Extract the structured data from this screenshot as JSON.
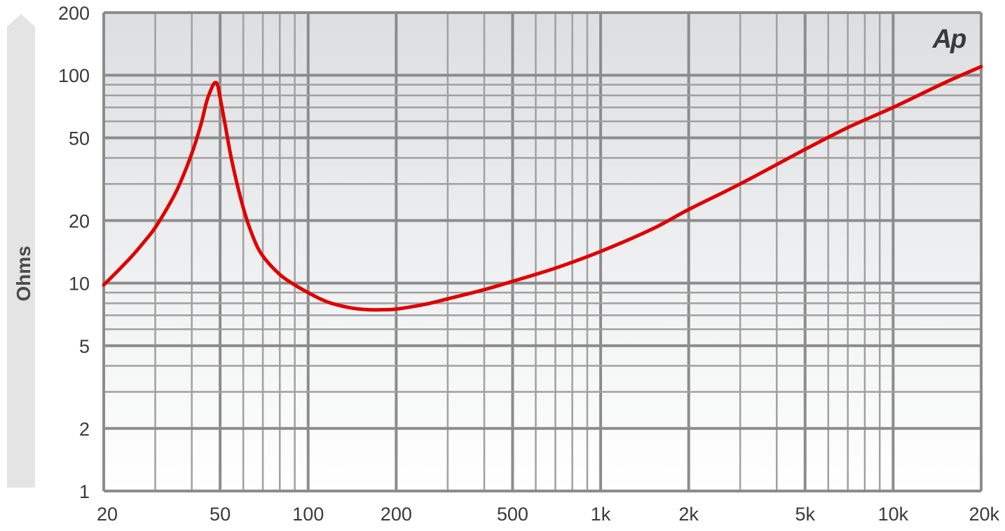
{
  "chart_data": {
    "type": "line",
    "title": "",
    "logo_text": "Ap",
    "ylabel": "Ohms",
    "xlabel": "",
    "x_scale": "log",
    "y_scale": "log",
    "xlim": [
      20,
      20000
    ],
    "ylim": [
      1,
      200
    ],
    "grid": true,
    "x_tick_values": [
      20,
      50,
      100,
      200,
      500,
      1000,
      2000,
      5000,
      10000,
      20000
    ],
    "x_tick_labels": [
      "20",
      "50",
      "100",
      "200",
      "500",
      "1k",
      "2k",
      "5k",
      "10k",
      "20k"
    ],
    "y_tick_values": [
      1,
      2,
      5,
      10,
      20,
      50,
      100,
      200
    ],
    "y_tick_labels": [
      "1",
      "2",
      "5",
      "10",
      "20",
      "50",
      "100",
      "200"
    ],
    "series": [
      {
        "color": "#e00000",
        "x": [
          20,
          22,
          25,
          28,
          30,
          33,
          36,
          40,
          43,
          45,
          47,
          48,
          49,
          50,
          52,
          55,
          60,
          65,
          70,
          80,
          90,
          100,
          110,
          120,
          140,
          160,
          180,
          200,
          250,
          300,
          400,
          500,
          700,
          1000,
          1500,
          2000,
          3000,
          5000,
          7000,
          10000,
          15000,
          20000
        ],
        "y": [
          9.8,
          11.2,
          13.5,
          16.3,
          18.5,
          23,
          29,
          42,
          58,
          75,
          88,
          92,
          90,
          78,
          58,
          38,
          23,
          16.5,
          13.5,
          11,
          9.8,
          9.0,
          8.4,
          8.0,
          7.6,
          7.45,
          7.45,
          7.5,
          7.9,
          8.4,
          9.3,
          10.2,
          11.8,
          14.2,
          18.2,
          22.6,
          30,
          44,
          56,
          70,
          92,
          110
        ]
      }
    ],
    "colors": {
      "line": "#e00000",
      "grid_major": "#8c8c8c",
      "grid_minor": "#a0a0a0",
      "label": "#3a3a3a",
      "ylabel_box": "#e4e4e4",
      "ylabel_text": "#4a4a4a",
      "bg_top": "#dcdee0",
      "bg_bottom": "#ffffff"
    }
  }
}
